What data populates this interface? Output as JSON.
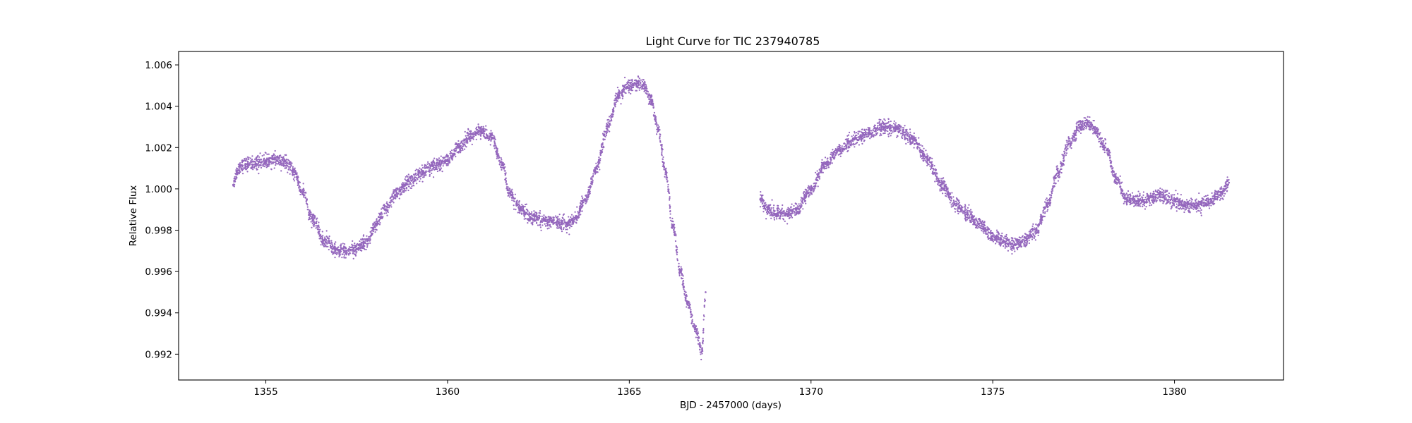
{
  "chart_data": {
    "type": "scatter",
    "title": "Light Curve for TIC 237940785",
    "xlabel": "BJD - 2457000 (days)",
    "ylabel": "Relative Flux",
    "xlim": [
      1352.6,
      1383.0
    ],
    "ylim": [
      0.99075,
      1.00665
    ],
    "xticks": [
      1355,
      1360,
      1365,
      1370,
      1375,
      1380
    ],
    "xtick_labels": [
      "1355",
      "1360",
      "1365",
      "1370",
      "1375",
      "1380"
    ],
    "yticks": [
      0.992,
      0.994,
      0.996,
      0.998,
      1.0,
      1.002,
      1.004,
      1.006
    ],
    "ytick_labels": [
      "0.992",
      "0.994",
      "0.996",
      "0.998",
      "1.000",
      "1.002",
      "1.004",
      "1.006"
    ],
    "grid": false,
    "marker_color": "#9467bd",
    "series": [
      {
        "name": "",
        "segments": [
          {
            "x": [
              1354.1,
              1354.2,
              1354.3,
              1354.5,
              1354.8,
              1355.0,
              1355.3,
              1355.5,
              1355.8,
              1356.0,
              1356.3,
              1356.6,
              1357.0,
              1357.2,
              1357.5,
              1357.8,
              1358.0,
              1358.3,
              1358.6,
              1359.0,
              1359.3,
              1359.6,
              1360.0,
              1360.3,
              1360.6,
              1360.9,
              1361.2,
              1361.5,
              1361.7,
              1362.0,
              1362.3,
              1362.7,
              1363.0,
              1363.3,
              1363.5,
              1363.8,
              1364.1,
              1364.4,
              1364.7,
              1365.0,
              1365.2,
              1365.4,
              1365.6,
              1365.8,
              1366.0,
              1366.2,
              1366.4,
              1366.6,
              1366.8,
              1367.0,
              1367.1
            ],
            "y": [
              1.0002,
              1.0008,
              1.0011,
              1.0012,
              1.0013,
              1.0013,
              1.0014,
              1.0013,
              1.0008,
              0.9998,
              0.9985,
              0.9975,
              0.997,
              0.997,
              0.9971,
              0.9975,
              0.9982,
              0.999,
              0.9998,
              1.0004,
              1.0008,
              1.0011,
              1.0014,
              1.002,
              1.0025,
              1.0028,
              1.0025,
              1.0012,
              0.9998,
              0.999,
              0.9986,
              0.9985,
              0.9984,
              0.9983,
              0.9986,
              0.9995,
              1.001,
              1.003,
              1.0045,
              1.005,
              1.0051,
              1.005,
              1.0043,
              1.0028,
              1.0008,
              0.9982,
              0.996,
              0.9945,
              0.9933,
              0.9922,
              0.995
            ]
          },
          {
            "x": [
              1368.6,
              1368.8,
              1369.0,
              1369.3,
              1369.6,
              1370.0,
              1370.4,
              1370.8,
              1371.2,
              1371.6,
              1372.0,
              1372.4,
              1372.8,
              1373.2,
              1373.6,
              1374.0,
              1374.3,
              1374.6,
              1375.0,
              1375.3,
              1375.6,
              1375.9,
              1376.2,
              1376.5,
              1376.8,
              1377.1,
              1377.4,
              1377.6,
              1377.8,
              1378.1,
              1378.4,
              1378.7,
              1379.0,
              1379.3,
              1379.6,
              1380.0,
              1380.3,
              1380.6,
              1381.0,
              1381.3,
              1381.5
            ],
            "y": [
              0.9995,
              0.999,
              0.9988,
              0.9988,
              0.999,
              1.0,
              1.0012,
              1.0019,
              1.0024,
              1.0027,
              1.003,
              1.0029,
              1.0024,
              1.0014,
              1.0002,
              0.9992,
              0.9988,
              0.9983,
              0.9977,
              0.9975,
              0.9973,
              0.9975,
              0.998,
              0.9992,
              1.0008,
              1.0022,
              1.003,
              1.0032,
              1.0029,
              1.002,
              1.0005,
              0.9995,
              0.9994,
              0.9995,
              0.9997,
              0.9994,
              0.9992,
              0.9992,
              0.9994,
              0.9998,
              1.0003
            ]
          }
        ]
      }
    ]
  }
}
